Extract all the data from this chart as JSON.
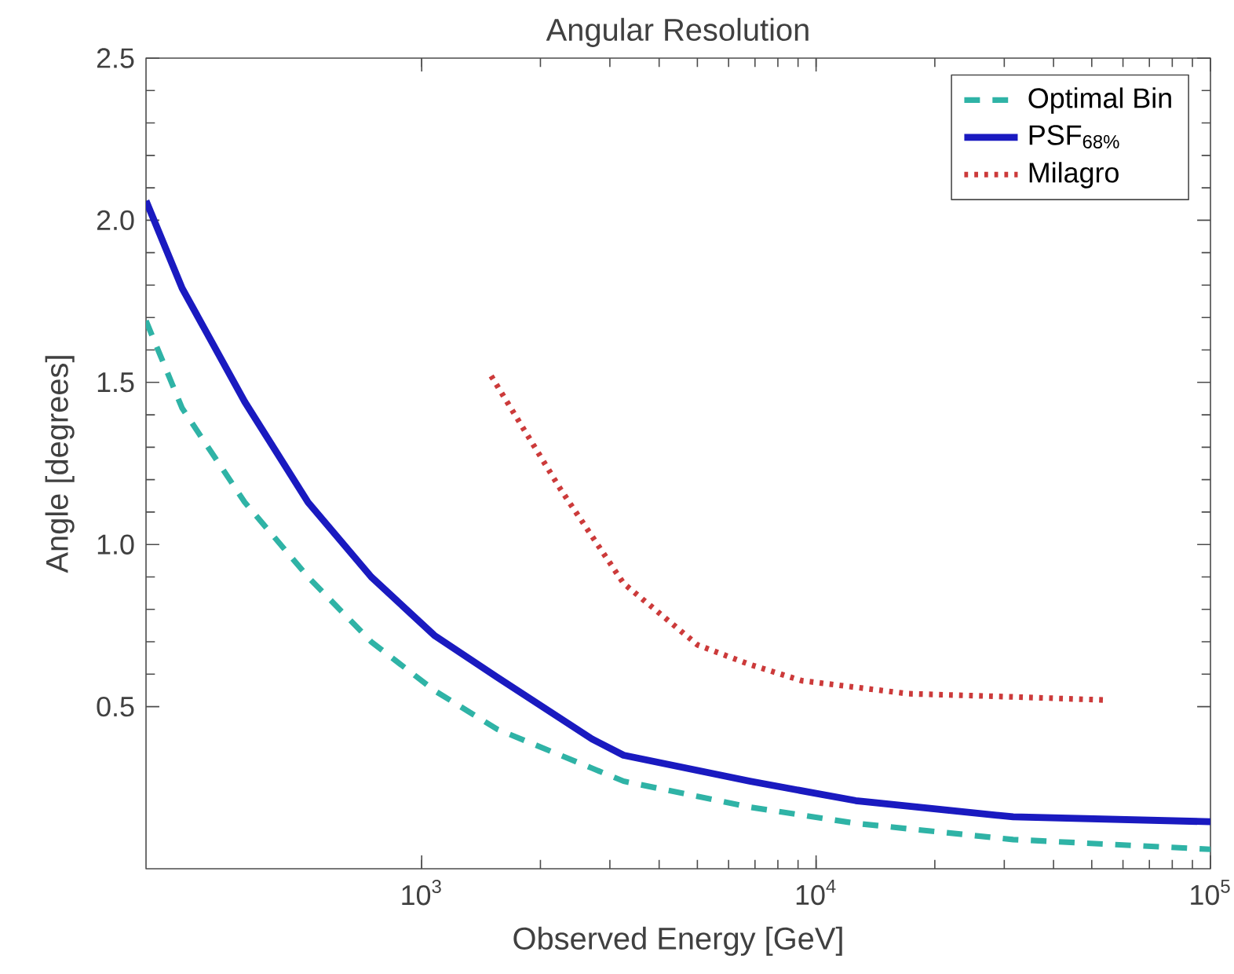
{
  "chart_data": {
    "type": "line",
    "title": "Angular Resolution",
    "xlabel": "Observed Energy [GeV]",
    "ylabel": "Angle [degrees]",
    "log": "x",
    "xlim": [
      200,
      100000
    ],
    "ylim": [
      0,
      2.5
    ],
    "xticks": [
      {
        "value": 1000,
        "label": "10$^{3}$"
      },
      {
        "value": 10000,
        "label": "10$^{4}$"
      },
      {
        "value": 100000,
        "label": "10$^{5}$"
      }
    ],
    "yticks": [
      {
        "value": 0.5,
        "label": "0.5"
      },
      {
        "value": 1.0,
        "label": "1.0"
      },
      {
        "value": 1.5,
        "label": "1.5"
      },
      {
        "value": 2.0,
        "label": "2.0"
      },
      {
        "value": 2.5,
        "label": "2.5"
      }
    ],
    "grid": false,
    "legend": "top right",
    "marker": "none",
    "series": [
      {
        "name": "Optimal Bin",
        "color": "#2fb3a6",
        "line_style": "dashed",
        "x": [
          200,
          247,
          356,
          515,
          745,
          1076,
          1556,
          2704,
          3250,
          6790,
          12600,
          31600,
          100000
        ],
        "values": [
          1.69,
          1.42,
          1.13,
          0.9,
          0.7,
          0.55,
          0.43,
          0.31,
          0.27,
          0.19,
          0.14,
          0.09,
          0.06
        ]
      },
      {
        "name": "PSF$_{68%}$",
        "color": "#1a1ac0",
        "line_style": "solid",
        "x": [
          200,
          247,
          356,
          515,
          745,
          1076,
          1556,
          2704,
          3250,
          6790,
          12600,
          31600,
          100000
        ],
        "values": [
          2.06,
          1.79,
          1.44,
          1.13,
          0.9,
          0.72,
          0.59,
          0.4,
          0.35,
          0.27,
          0.21,
          0.16,
          0.145
        ]
      },
      {
        "name": "Milagro",
        "color": "#cc3a3a",
        "line_style": "dotted",
        "x": [
          1500,
          2250,
          3250,
          5010,
          6790,
          9200,
          17060,
          31600,
          55000
        ],
        "values": [
          1.52,
          1.17,
          0.88,
          0.69,
          0.63,
          0.58,
          0.54,
          0.53,
          0.52
        ]
      }
    ]
  }
}
